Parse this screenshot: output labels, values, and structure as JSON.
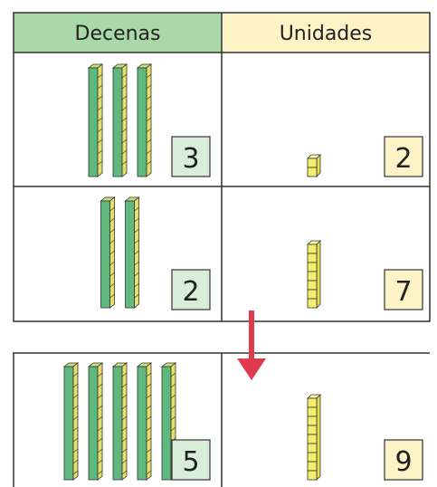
{
  "header": {
    "columns": [
      "Decenas",
      "Unidades"
    ]
  },
  "rows": [
    {
      "tens": 3,
      "units": 2
    },
    {
      "tens": 2,
      "units": 7
    }
  ],
  "result": {
    "tens": 5,
    "units": 9
  }
}
